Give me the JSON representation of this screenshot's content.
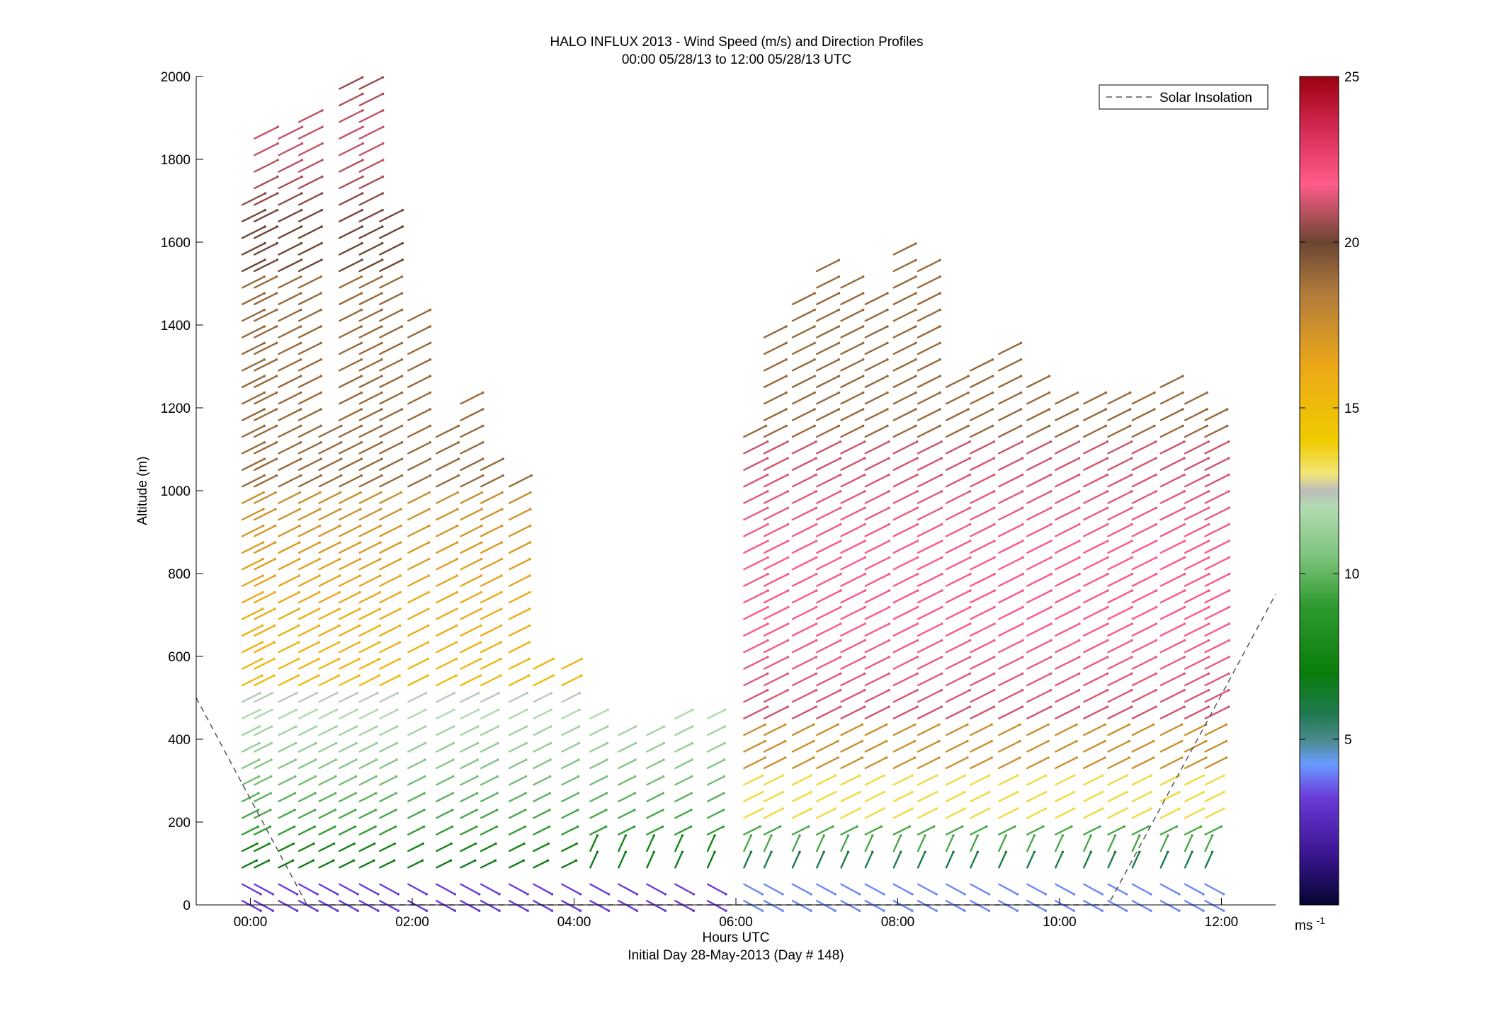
{
  "chart_data": {
    "type": "vector-field",
    "title": "HALO INFLUX 2013 - Wind Speed (m/s) and Direction Profiles",
    "subtitle": "00:00 05/28/13 to 12:00 05/28/13  UTC",
    "xlabel": "Hours UTC",
    "xlabel2": "Initial Day 28-May-2013 (Day # 148)",
    "ylabel": "Altitude (m)",
    "xlim": [
      -0.67,
      12.67
    ],
    "ylim": [
      0,
      2000
    ],
    "x_ticks": [
      0,
      2,
      4,
      6,
      8,
      10,
      12
    ],
    "x_tick_labels": [
      "00:00",
      "02:00",
      "04:00",
      "06:00",
      "08:00",
      "10:00",
      "12:00"
    ],
    "y_ticks": [
      0,
      200,
      400,
      600,
      800,
      1000,
      1200,
      1400,
      1600,
      1800,
      2000
    ],
    "y_tick_labels": [
      "0",
      "200",
      "400",
      "600",
      "800",
      "1000",
      "1200",
      "1400",
      "1600",
      "1800",
      "2000"
    ],
    "legend": {
      "entries": [
        "Solar Insolation"
      ],
      "placement": "top-right"
    },
    "colorbar": {
      "min": 0,
      "max": 25,
      "ticks": [
        5,
        10,
        15,
        20,
        25
      ],
      "tick_labels": [
        "5",
        "10",
        "15",
        "20",
        "25"
      ],
      "unit": "ms",
      "unit_sup": "-1"
    },
    "solar_insolation": [
      {
        "x": -0.67,
        "y": 500
      },
      {
        "x": 0.7,
        "y": 0
      },
      {
        "x": 10.6,
        "y": 0
      },
      {
        "x": 12.67,
        "y": 750
      }
    ],
    "profile_times": [
      -0.1,
      0.05,
      0.35,
      0.6,
      0.85,
      1.1,
      1.35,
      1.6,
      1.95,
      2.3,
      2.6,
      2.85,
      3.2,
      3.5,
      3.85,
      4.2,
      4.55,
      4.9,
      5.25,
      5.65,
      6.1,
      6.35,
      6.7,
      7.0,
      7.3,
      7.6,
      7.95,
      8.25,
      8.6,
      8.9,
      9.25,
      9.6,
      9.95,
      10.3,
      10.6,
      10.9,
      11.25,
      11.55,
      11.8
    ],
    "profile_tops": [
      1700,
      1870,
      1870,
      1900,
      1140,
      2000,
      2000,
      1660,
      1440,
      1140,
      1240,
      1060,
      1010,
      570,
      600,
      460,
      430,
      430,
      450,
      480,
      1130,
      1400,
      1480,
      1560,
      1490,
      1480,
      1570,
      1560,
      1280,
      1310,
      1330,
      1250,
      1240,
      1240,
      1230,
      1230,
      1250,
      1210,
      1180
    ]
  }
}
